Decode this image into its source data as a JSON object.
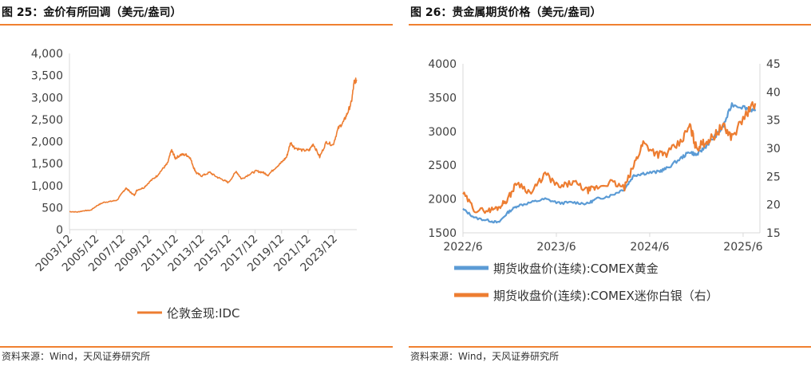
{
  "left": {
    "title": "图 25：金价有所回调（美元/盎司）",
    "source": "资料来源：Wind，天风证券研究所"
  },
  "right": {
    "title": "图 26：贵金属期货价格（美元/盎司）",
    "source": "资料来源：Wind，天风证券研究所"
  },
  "colors": {
    "gold_line": "#ed7d31",
    "silver_line": "#ed7d31",
    "gold_futures": "#5b9bd5",
    "rule": "#f08030",
    "axis": "#d9d9d9"
  },
  "chart_data": [
    {
      "type": "line",
      "title": "图 25：金价有所回调（美元/盎司）",
      "x_tick_labels": [
        "2003/12",
        "2005/12",
        "2007/12",
        "2009/12",
        "2011/12",
        "2013/12",
        "2015/12",
        "2017/12",
        "2019/12",
        "2021/12",
        "2023/12"
      ],
      "ylim": [
        0,
        4000
      ],
      "y_tick_labels": [
        "0",
        "500",
        "1,000",
        "1,500",
        "2,000",
        "2,500",
        "3,000",
        "3,500",
        "4,000"
      ],
      "grid": false,
      "legend_position": "bottom",
      "series": [
        {
          "name": "伦敦金现:IDC",
          "x": [
            2003.9,
            2004.5,
            2005.0,
            2005.5,
            2006.0,
            2006.5,
            2007.0,
            2007.5,
            2008.0,
            2008.2,
            2008.5,
            2008.8,
            2009.0,
            2009.5,
            2010.0,
            2010.5,
            2011.0,
            2011.3,
            2011.6,
            2011.7,
            2011.9,
            2012.3,
            2012.7,
            2013.0,
            2013.3,
            2013.5,
            2013.9,
            2014.5,
            2015.0,
            2015.5,
            2015.9,
            2016.5,
            2016.9,
            2017.5,
            2018.0,
            2018.5,
            2018.9,
            2019.5,
            2019.9,
            2020.3,
            2020.6,
            2020.9,
            2021.5,
            2022.0,
            2022.3,
            2022.8,
            2023.3,
            2023.8,
            2024.2,
            2024.6,
            2024.9,
            2025.2,
            2025.4,
            2025.6
          ],
          "y": [
            410,
            400,
            430,
            440,
            550,
            620,
            640,
            670,
            880,
            940,
            850,
            780,
            900,
            950,
            1100,
            1220,
            1400,
            1500,
            1800,
            1750,
            1620,
            1700,
            1700,
            1640,
            1400,
            1280,
            1220,
            1300,
            1200,
            1130,
            1070,
            1320,
            1150,
            1260,
            1330,
            1300,
            1240,
            1420,
            1520,
            1650,
            1980,
            1860,
            1800,
            1800,
            1950,
            1650,
            1990,
            1920,
            2300,
            2450,
            2650,
            2900,
            3350,
            3400
          ]
        }
      ]
    },
    {
      "type": "line",
      "title": "图 26：贵金属期货价格（美元/盎司）",
      "x_tick_labels": [
        "2022/6",
        "2023/6",
        "2024/6",
        "2025/6"
      ],
      "ylim": [
        1500,
        4000
      ],
      "y_tick_labels": [
        "1500",
        "2000",
        "2500",
        "3000",
        "3500",
        "4000"
      ],
      "y2lim": [
        15,
        45
      ],
      "y2_tick_labels": [
        "15",
        "20",
        "25",
        "30",
        "35",
        "40",
        "45"
      ],
      "grid": false,
      "legend_position": "bottom",
      "series": [
        {
          "name": "期货收盘价(连续):COMEX黄金",
          "axis": "left",
          "x": [
            2022.42,
            2022.55,
            2022.7,
            2022.8,
            2022.9,
            2023.0,
            2023.15,
            2023.3,
            2023.45,
            2023.6,
            2023.75,
            2023.85,
            2024.0,
            2024.15,
            2024.25,
            2024.35,
            2024.5,
            2024.6,
            2024.75,
            2024.85,
            2024.92,
            2025.0,
            2025.1,
            2025.2,
            2025.3,
            2025.45,
            2025.55
          ],
          "y": [
            1850,
            1720,
            1680,
            1650,
            1800,
            1900,
            1950,
            2000,
            1940,
            1950,
            1930,
            2000,
            2050,
            2150,
            2350,
            2380,
            2400,
            2450,
            2600,
            2700,
            2650,
            2750,
            2900,
            3050,
            3400,
            3350,
            3300
          ]
        },
        {
          "name": "期货收盘价(连续):COMEX迷你白银（右）",
          "axis": "right",
          "x": [
            2022.42,
            2022.55,
            2022.7,
            2022.8,
            2022.9,
            2023.0,
            2023.15,
            2023.3,
            2023.45,
            2023.6,
            2023.75,
            2023.85,
            2024.0,
            2024.15,
            2024.25,
            2024.35,
            2024.5,
            2024.6,
            2024.75,
            2024.85,
            2024.92,
            2025.0,
            2025.1,
            2025.2,
            2025.3,
            2025.45,
            2025.55
          ],
          "y": [
            22,
            19,
            19,
            19.5,
            21,
            24,
            22,
            25.5,
            23,
            24,
            22.5,
            23,
            24,
            23,
            27,
            31,
            29,
            29,
            31,
            34,
            30,
            31,
            32,
            34,
            32,
            36,
            38
          ]
        }
      ]
    }
  ]
}
